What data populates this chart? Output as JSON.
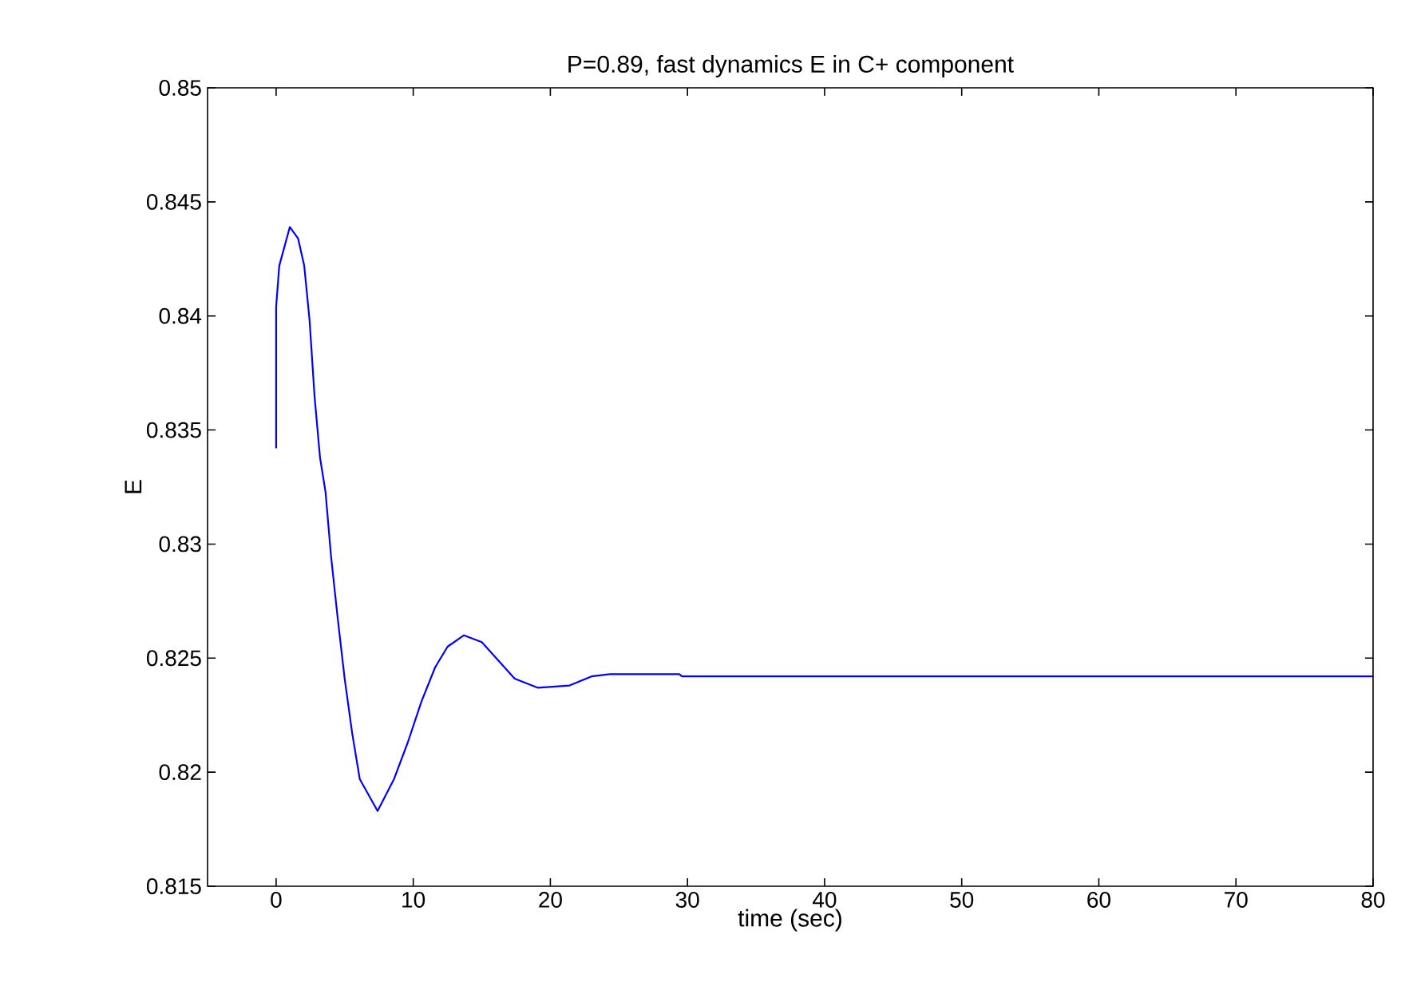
{
  "chart_data": {
    "type": "line",
    "title": "P=0.89, fast dynamics E in C+ component",
    "xlabel": "time (sec)",
    "ylabel": "E",
    "xlim": [
      -5,
      80
    ],
    "ylim": [
      0.815,
      0.85
    ],
    "xticks": [
      0,
      10,
      20,
      30,
      40,
      50,
      60,
      70,
      80
    ],
    "yticks": [
      0.815,
      0.82,
      0.825,
      0.83,
      0.835,
      0.84,
      0.845,
      0.85
    ],
    "grid": false,
    "line_style": "solid",
    "marker": "none",
    "series": [
      {
        "color": "#0000ff",
        "x": [
          0,
          0,
          0.23,
          1.0,
          1.6,
          2.05,
          2.44,
          2.8,
          3.2,
          3.6,
          4.0,
          4.5,
          5.0,
          5.55,
          6.1,
          7.4,
          8.6,
          9.6,
          10.6,
          11.6,
          12.5,
          13.7,
          15.0,
          17.4,
          19.1,
          21.4,
          23.0,
          24.4,
          29.4,
          29.6,
          80
        ],
        "values": [
          0.8342,
          0.8404,
          0.8422,
          0.8439,
          0.8434,
          0.8422,
          0.8398,
          0.8365,
          0.8338,
          0.8323,
          0.8295,
          0.8267,
          0.8241,
          0.8217,
          0.8197,
          0.8183,
          0.8197,
          0.8213,
          0.8231,
          0.8246,
          0.8255,
          0.826,
          0.8257,
          0.8241,
          0.8237,
          0.8238,
          0.8242,
          0.8243,
          0.8243,
          0.8242,
          0.8242
        ]
      }
    ]
  }
}
